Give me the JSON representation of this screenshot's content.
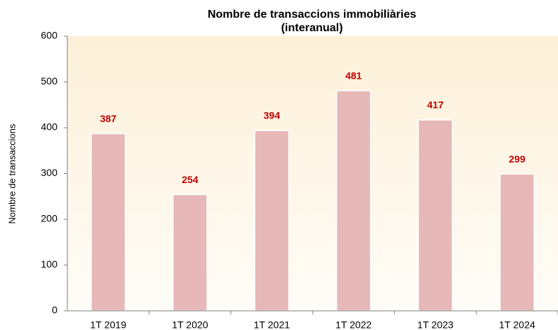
{
  "chart_data": {
    "type": "bar",
    "title": [
      "Nombre de transaccions immobiliàries",
      "(interanual)"
    ],
    "y_label": "Nombre de transaccions",
    "categories": [
      "1T 2019",
      "1T 2020",
      "1T 2021",
      "1T 2022",
      "1T 2023",
      "1T 2024"
    ],
    "values": [
      387,
      254,
      394,
      481,
      417,
      299
    ],
    "color": "#e6b8b7",
    "label_color": "#c00000",
    "ylim": [
      0,
      600
    ],
    "yticks": [
      0,
      100,
      200,
      300,
      400,
      500,
      600
    ],
    "grid": false
  }
}
